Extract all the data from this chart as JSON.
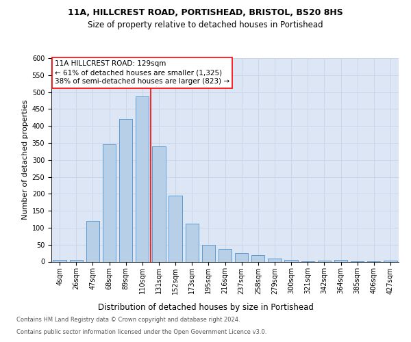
{
  "title1": "11A, HILLCREST ROAD, PORTISHEAD, BRISTOL, BS20 8HS",
  "title2": "Size of property relative to detached houses in Portishead",
  "xlabel": "Distribution of detached houses by size in Portishead",
  "ylabel": "Number of detached properties",
  "categories": [
    "4sqm",
    "26sqm",
    "47sqm",
    "68sqm",
    "89sqm",
    "110sqm",
    "131sqm",
    "152sqm",
    "173sqm",
    "195sqm",
    "216sqm",
    "237sqm",
    "258sqm",
    "279sqm",
    "300sqm",
    "321sqm",
    "342sqm",
    "364sqm",
    "385sqm",
    "406sqm",
    "427sqm"
  ],
  "values": [
    5,
    5,
    120,
    345,
    420,
    488,
    340,
    195,
    112,
    50,
    37,
    26,
    20,
    10,
    5,
    1,
    4,
    5,
    2,
    2,
    4
  ],
  "bar_color": "#b8cfe8",
  "bar_edge_color": "#5b9bd5",
  "grid_color": "#c8d4e8",
  "background_color": "#dce6f4",
  "property_line_color": "red",
  "annotation_line1": "11A HILLCREST ROAD: 129sqm",
  "annotation_line2": "← 61% of detached houses are smaller (1,325)",
  "annotation_line3": "38% of semi-detached houses are larger (823) →",
  "annotation_box_color": "white",
  "annotation_box_edge": "red",
  "footnote1": "Contains HM Land Registry data © Crown copyright and database right 2024.",
  "footnote2": "Contains public sector information licensed under the Open Government Licence v3.0.",
  "ylim": [
    0,
    600
  ],
  "yticks": [
    0,
    50,
    100,
    150,
    200,
    250,
    300,
    350,
    400,
    450,
    500,
    550,
    600
  ],
  "vline_x_index": 5.5,
  "bar_width": 0.8,
  "title1_fontsize": 9,
  "title2_fontsize": 8.5,
  "ylabel_fontsize": 8,
  "xlabel_fontsize": 8.5,
  "tick_fontsize": 7,
  "annotation_fontsize": 7.5,
  "footnote_fontsize": 6
}
